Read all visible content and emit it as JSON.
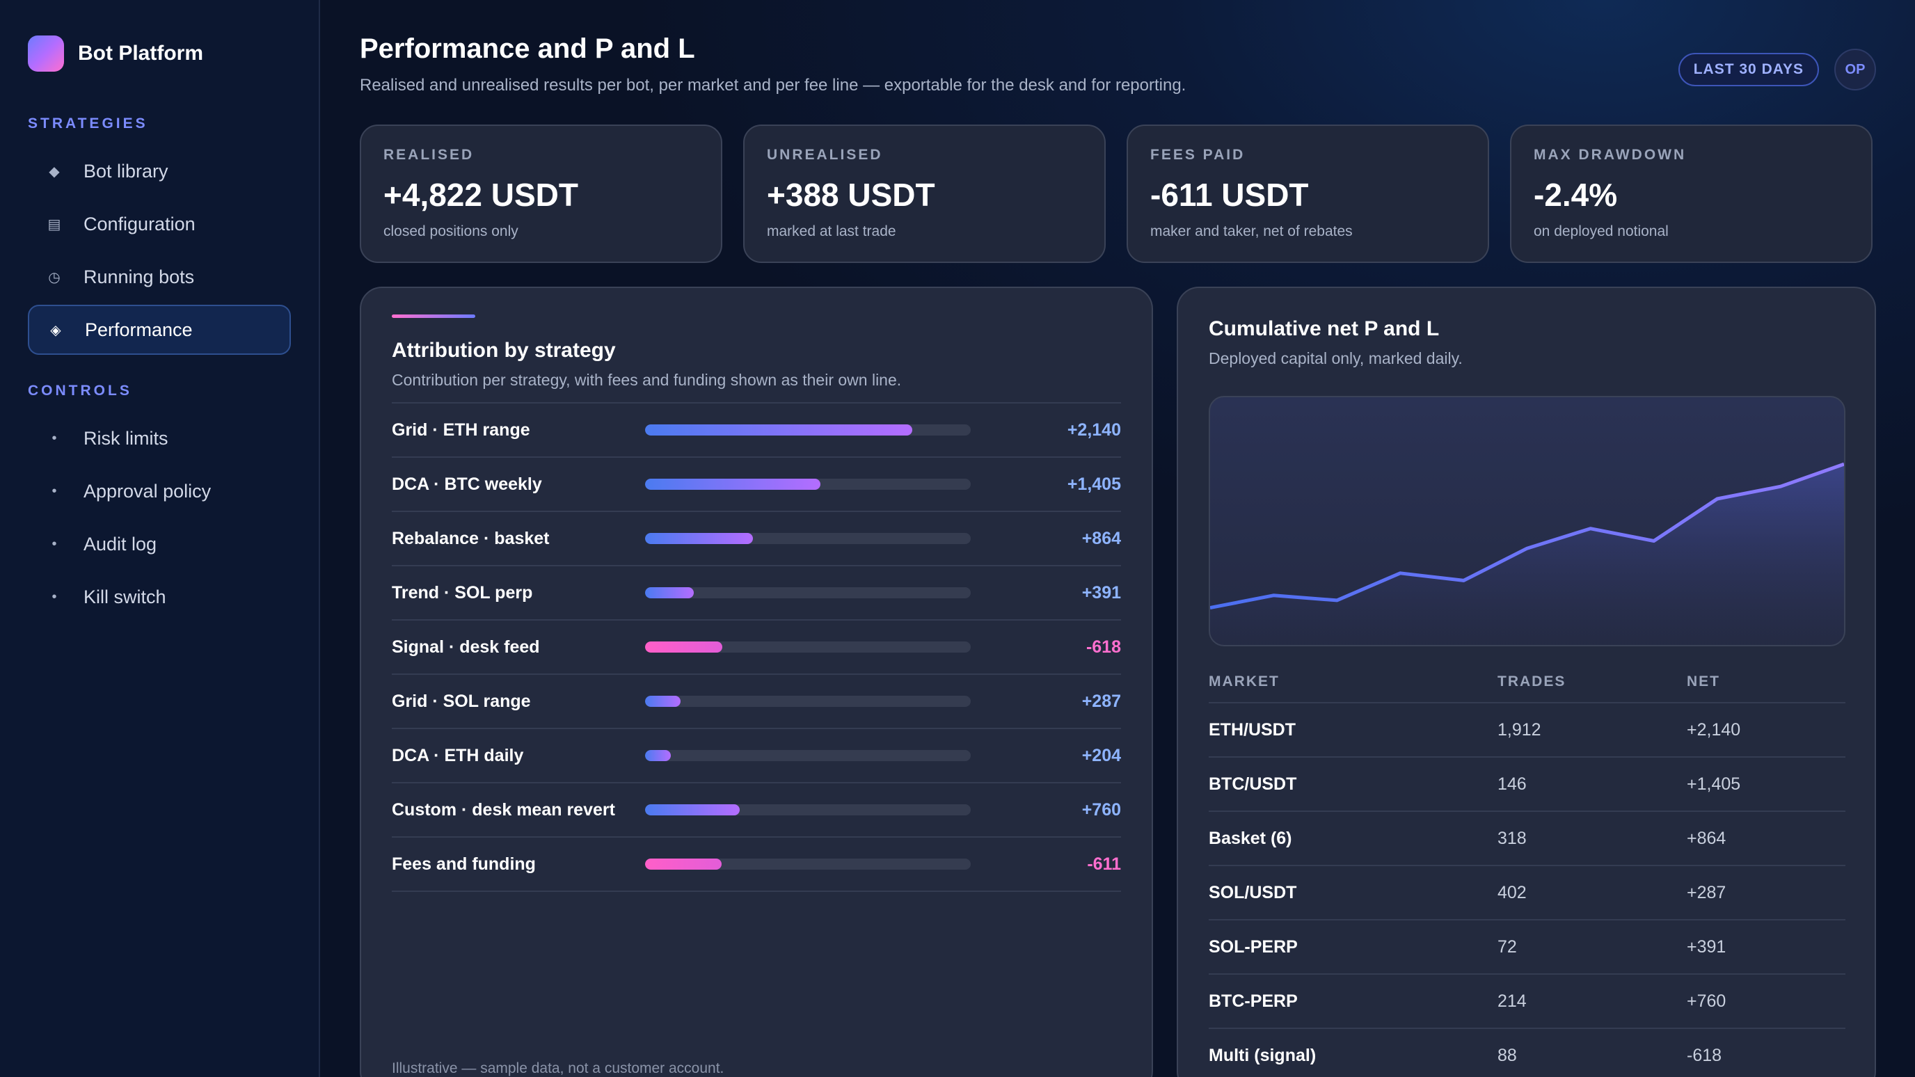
{
  "brand": {
    "name": "Bot Platform"
  },
  "sidebar": {
    "strategies_label": "STRATEGIES",
    "strategies": [
      {
        "label": "Bot library",
        "icon": "diamond-icon"
      },
      {
        "label": "Configuration",
        "icon": "list-icon"
      },
      {
        "label": "Running bots",
        "icon": "clock-icon"
      },
      {
        "label": "Performance",
        "icon": "diamond-outline-icon",
        "active": true
      }
    ],
    "controls_label": "CONTROLS",
    "controls": [
      {
        "label": "Risk limits"
      },
      {
        "label": "Approval policy"
      },
      {
        "label": "Audit log"
      },
      {
        "label": "Kill switch"
      }
    ]
  },
  "header": {
    "title": "Performance and P and L",
    "subtitle": "Realised and unrealised results per bot, per market and per fee line — exportable for the desk and for reporting.",
    "range": "LAST 30 DAYS",
    "avatar": "OP"
  },
  "kpis": [
    {
      "label": "REALISED",
      "value": "+4,822 USDT",
      "note": "closed positions only"
    },
    {
      "label": "UNREALISED",
      "value": "+388 USDT",
      "note": "marked at last trade"
    },
    {
      "label": "FEES PAID",
      "value": "-611 USDT",
      "note": "maker and taker, net of rebates"
    },
    {
      "label": "MAX DRAWDOWN",
      "value": "-2.4%",
      "note": "on deployed notional"
    }
  ],
  "attribution": {
    "title": "Attribution by strategy",
    "subtitle": "Contribution per strategy, with fees and funding shown as their own line.",
    "rows": [
      {
        "name": "Grid · ETH range",
        "value": "+2,140",
        "amount": 2140
      },
      {
        "name": "DCA · BTC weekly",
        "value": "+1,405",
        "amount": 1405
      },
      {
        "name": "Rebalance · basket",
        "value": "+864",
        "amount": 864
      },
      {
        "name": "Trend · SOL perp",
        "value": "+391",
        "amount": 391
      },
      {
        "name": "Signal · desk feed",
        "value": "-618",
        "amount": -618
      },
      {
        "name": "Grid · SOL range",
        "value": "+287",
        "amount": 287
      },
      {
        "name": "DCA · ETH daily",
        "value": "+204",
        "amount": 204
      },
      {
        "name": "Custom · desk mean revert",
        "value": "+760",
        "amount": 760
      },
      {
        "name": "Fees and funding",
        "value": "-611",
        "amount": -611
      }
    ],
    "footnote": "Illustrative — sample data, not a customer account."
  },
  "cumulative": {
    "title": "Cumulative net P and L",
    "subtitle": "Deployed capital only, marked daily."
  },
  "chart_data": {
    "type": "area",
    "title": "Cumulative net P and L",
    "xlabel": "",
    "ylabel": "",
    "grid": false,
    "ylim": [
      0,
      100
    ],
    "x": [
      1,
      2,
      3,
      4,
      5,
      6,
      7,
      8,
      9,
      10,
      11
    ],
    "series": [
      {
        "values": [
          15,
          20,
          18,
          29,
          26,
          39,
          47,
          42,
          59,
          64,
          73
        ]
      }
    ]
  },
  "markets": {
    "headers": [
      "MARKET",
      "TRADES",
      "NET"
    ],
    "rows": [
      {
        "market": "ETH/USDT",
        "trades": "1,912",
        "net": "+2,140"
      },
      {
        "market": "BTC/USDT",
        "trades": "146",
        "net": "+1,405"
      },
      {
        "market": "Basket (6)",
        "trades": "318",
        "net": "+864"
      },
      {
        "market": "SOL/USDT",
        "trades": "402",
        "net": "+287"
      },
      {
        "market": "SOL-PERP",
        "trades": "72",
        "net": "+391"
      },
      {
        "market": "BTC-PERP",
        "trades": "214",
        "net": "+760"
      },
      {
        "market": "Multi (signal)",
        "trades": "88",
        "net": "-618"
      }
    ]
  },
  "colors": {
    "accent": "#7c8cff",
    "positive": "#8eb4ff",
    "negative": "#ff6fcf",
    "line": "#7f86ff"
  }
}
